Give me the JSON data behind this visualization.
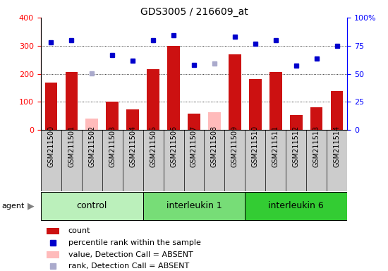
{
  "title": "GDS3005 / 216609_at",
  "samples": [
    "GSM211500",
    "GSM211501",
    "GSM211502",
    "GSM211503",
    "GSM211504",
    "GSM211505",
    "GSM211506",
    "GSM211507",
    "GSM211508",
    "GSM211509",
    "GSM211510",
    "GSM211511",
    "GSM211512",
    "GSM211513",
    "GSM211514"
  ],
  "bar_values": [
    170,
    207,
    0,
    102,
    74,
    217,
    300,
    59,
    0,
    270,
    182,
    207,
    54,
    82,
    138
  ],
  "bar_absent": [
    0,
    0,
    40,
    0,
    0,
    0,
    0,
    0,
    64,
    0,
    0,
    0,
    0,
    0,
    0
  ],
  "rank_values": [
    311,
    320,
    0,
    268,
    246,
    320,
    338,
    232,
    0,
    331,
    308,
    320,
    229,
    254,
    299
  ],
  "rank_absent": [
    0,
    0,
    201,
    0,
    0,
    0,
    0,
    0,
    236,
    0,
    0,
    0,
    0,
    0,
    0
  ],
  "groups": [
    {
      "label": "control",
      "start": 0,
      "end": 5,
      "color": "#bbf0bb"
    },
    {
      "label": "interleukin 1",
      "start": 5,
      "end": 10,
      "color": "#77dd77"
    },
    {
      "label": "interleukin 6",
      "start": 10,
      "end": 15,
      "color": "#33cc33"
    }
  ],
  "ylim_left": [
    0,
    400
  ],
  "ylim_right": [
    0,
    100
  ],
  "yticks_left": [
    0,
    100,
    200,
    300,
    400
  ],
  "yticks_right": [
    0,
    25,
    50,
    75,
    100
  ],
  "yticklabels_right": [
    "0",
    "25",
    "50",
    "75",
    "100%"
  ],
  "grid_vals": [
    100,
    200,
    300
  ],
  "bar_color_present": "#cc1111",
  "bar_color_absent": "#ffbbbb",
  "rank_color_present": "#0000cc",
  "rank_color_absent": "#aaaacc",
  "xticklabel_bg": "#cccccc",
  "plot_bg": "#ffffff",
  "title_fontsize": 10,
  "tick_fontsize": 7,
  "legend_fontsize": 8,
  "group_fontsize": 9
}
